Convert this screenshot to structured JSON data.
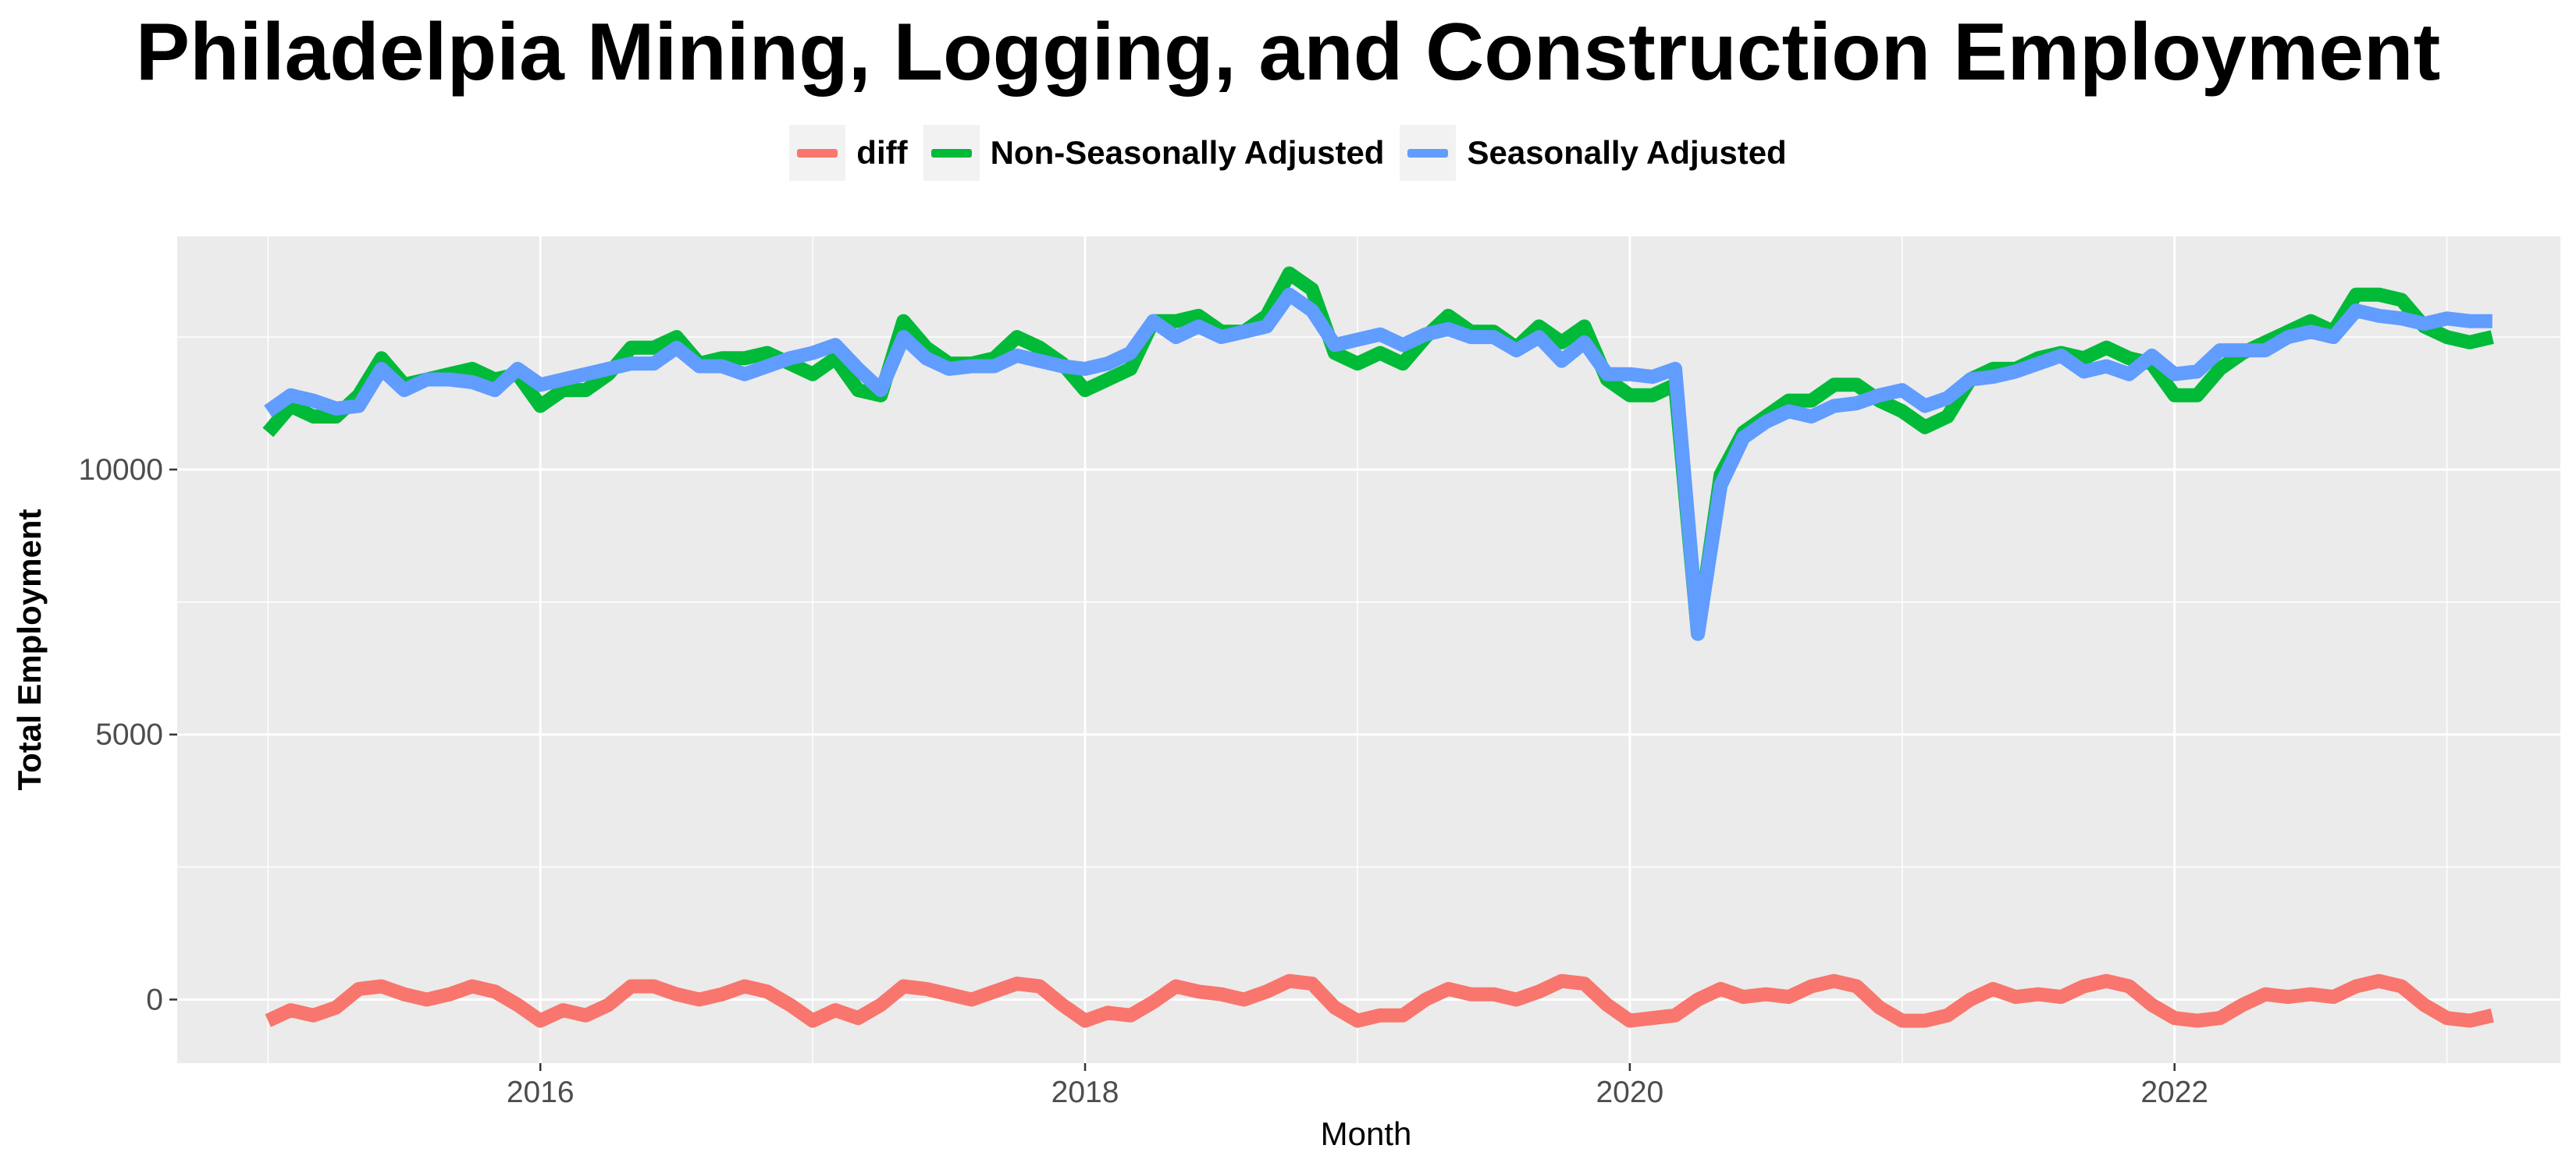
{
  "chart_data": {
    "type": "line",
    "title": "Philadelpia Mining, Logging, and Construction Employment",
    "xlabel": "Month",
    "ylabel": "Total Employment",
    "x_ticks": [
      "2016",
      "2018",
      "2020",
      "2022"
    ],
    "y_ticks": [
      "0",
      "5000",
      "10000"
    ],
    "ylim": [
      -1200,
      14400
    ],
    "xlim": [
      "2014-09",
      "2023-06"
    ],
    "grid": true,
    "legend_position": "top",
    "start_month": "2015-01",
    "series": [
      {
        "name": "diff",
        "color": "#F8766D",
        "values": [
          -400,
          -200,
          -300,
          -150,
          200,
          250,
          100,
          0,
          100,
          250,
          150,
          -100,
          -400,
          -200,
          -300,
          -100,
          250,
          250,
          100,
          0,
          100,
          250,
          150,
          -100,
          -400,
          -200,
          -350,
          -100,
          250,
          200,
          100,
          0,
          150,
          300,
          250,
          -100,
          -400,
          -250,
          -300,
          -50,
          250,
          150,
          100,
          0,
          150,
          350,
          300,
          -150,
          -400,
          -300,
          -300,
          0,
          200,
          100,
          100,
          0,
          150,
          350,
          300,
          -100,
          -400,
          -350,
          -300,
          0,
          200,
          50,
          100,
          50,
          250,
          350,
          250,
          -150,
          -400,
          -400,
          -300,
          0,
          200,
          50,
          100,
          50,
          250,
          350,
          250,
          -100,
          -350,
          -400,
          -350,
          -100,
          100,
          50,
          100,
          50,
          250,
          350,
          250,
          -100,
          -350,
          -400,
          -300
        ]
      },
      {
        "name": "Non-Seasonally Adjusted",
        "color": "#00BA38",
        "values": [
          10700,
          11200,
          11000,
          11000,
          11400,
          12100,
          11600,
          11700,
          11800,
          11900,
          11700,
          11800,
          11200,
          11500,
          11500,
          11800,
          12300,
          12300,
          12500,
          12000,
          12100,
          12100,
          12200,
          12000,
          11800,
          12100,
          11500,
          11400,
          12800,
          12300,
          12000,
          12000,
          12100,
          12500,
          12300,
          12000,
          11500,
          11700,
          11900,
          12800,
          12800,
          12900,
          12600,
          12600,
          12900,
          13700,
          13400,
          12200,
          12000,
          12200,
          12000,
          12500,
          12900,
          12600,
          12600,
          12300,
          12700,
          12400,
          12700,
          11700,
          11400,
          11400,
          11600,
          6900,
          9900,
          10700,
          11000,
          11300,
          11300,
          11600,
          11600,
          11300,
          11100,
          10800,
          11000,
          11700,
          11900,
          11900,
          12100,
          12200,
          12100,
          12300,
          12100,
          12000,
          11400,
          11400,
          11900,
          12200,
          12400,
          12600,
          12800,
          12600,
          13300,
          13300,
          13200,
          12700,
          12500,
          12400,
          12500
        ]
      },
      {
        "name": "Seasonally Adjusted",
        "color": "#619CFF",
        "values": [
          11100,
          11400,
          11300,
          11150,
          11200,
          11900,
          11500,
          11700,
          11700,
          11650,
          11500,
          11900,
          11600,
          11700,
          11800,
          11900,
          12000,
          12000,
          12300,
          11950,
          11950,
          11800,
          11950,
          12100,
          12200,
          12350,
          11900,
          11500,
          12500,
          12100,
          11900,
          11950,
          11950,
          12150,
          12050,
          11950,
          11900,
          12000,
          12200,
          12800,
          12500,
          12700,
          12500,
          12600,
          12700,
          13300,
          13000,
          12350,
          12450,
          12550,
          12350,
          12550,
          12650,
          12500,
          12500,
          12250,
          12500,
          12050,
          12400,
          11800,
          11800,
          11750,
          11900,
          6900,
          9700,
          10600,
          10900,
          11100,
          11000,
          11200,
          11250,
          11400,
          11500,
          11200,
          11350,
          11700,
          11750,
          11850,
          12000,
          12150,
          11850,
          11950,
          11800,
          12150,
          11800,
          11850,
          12250,
          12250,
          12250,
          12500,
          12600,
          12500,
          13000,
          12900,
          12850,
          12750,
          12850,
          12800,
          12800
        ]
      }
    ]
  }
}
